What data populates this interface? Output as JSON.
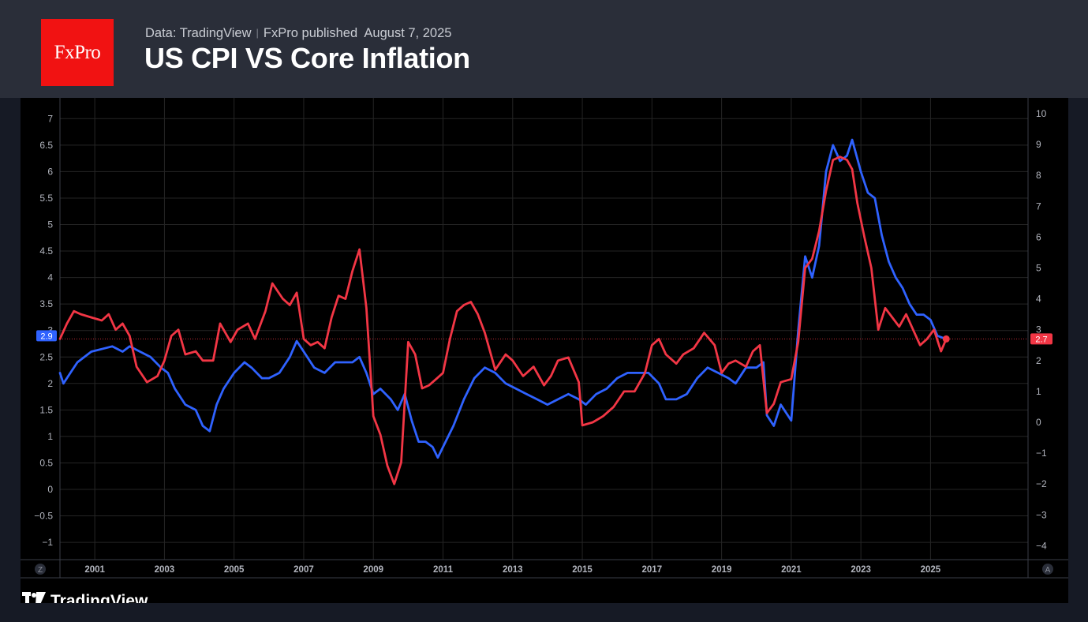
{
  "header": {
    "logo_text": "FxPro",
    "data_source": "Data: TradingView",
    "publisher": "FxPro published",
    "date": "August 7, 2025",
    "title": "US CPI VS Core Inflation"
  },
  "footer": {
    "brand": "TradingView"
  },
  "colors": {
    "core": "#2f62ff",
    "cpi": "#f23645",
    "grid": "#252525",
    "axis_text": "#b2b5be",
    "background": "#000000"
  },
  "chart_data": {
    "type": "line",
    "title": "US CPI VS Core Inflation",
    "grid": true,
    "x_tick_labels": [
      "2001",
      "2003",
      "2005",
      "2007",
      "2009",
      "2011",
      "2013",
      "2015",
      "2017",
      "2019",
      "2021",
      "2023",
      "2025"
    ],
    "left_axis": {
      "ticks": [
        -1,
        -0.5,
        0,
        0.5,
        1,
        1.5,
        2,
        2.5,
        3,
        3.5,
        4,
        4.5,
        5,
        5.5,
        6,
        6.5,
        7
      ],
      "range": [
        -1.2,
        7.1
      ]
    },
    "right_axis": {
      "ticks": [
        -4,
        -3,
        -2,
        -1,
        0,
        1,
        2,
        3,
        4,
        5,
        6,
        7,
        8,
        9,
        10
      ],
      "range": [
        -4.3,
        10.2
      ]
    },
    "axis_buttons": {
      "left": "Z",
      "right": "A"
    },
    "series": [
      {
        "key": "core",
        "axis": "left",
        "last_value_label": "2.9",
        "points": [
          [
            2000.0,
            2.2
          ],
          [
            2000.1,
            2.0
          ],
          [
            2000.3,
            2.2
          ],
          [
            2000.5,
            2.4
          ],
          [
            2000.7,
            2.5
          ],
          [
            2000.9,
            2.6
          ],
          [
            2001.2,
            2.65
          ],
          [
            2001.5,
            2.7
          ],
          [
            2001.8,
            2.6
          ],
          [
            2002.0,
            2.7
          ],
          [
            2002.3,
            2.6
          ],
          [
            2002.6,
            2.5
          ],
          [
            2002.9,
            2.3
          ],
          [
            2003.1,
            2.2
          ],
          [
            2003.3,
            1.9
          ],
          [
            2003.6,
            1.6
          ],
          [
            2003.9,
            1.5
          ],
          [
            2004.1,
            1.2
          ],
          [
            2004.3,
            1.1
          ],
          [
            2004.5,
            1.6
          ],
          [
            2004.7,
            1.9
          ],
          [
            2005.0,
            2.2
          ],
          [
            2005.3,
            2.4
          ],
          [
            2005.5,
            2.3
          ],
          [
            2005.8,
            2.1
          ],
          [
            2006.0,
            2.1
          ],
          [
            2006.3,
            2.2
          ],
          [
            2006.6,
            2.5
          ],
          [
            2006.8,
            2.8
          ],
          [
            2007.0,
            2.6
          ],
          [
            2007.3,
            2.3
          ],
          [
            2007.6,
            2.2
          ],
          [
            2007.9,
            2.4
          ],
          [
            2008.2,
            2.4
          ],
          [
            2008.4,
            2.4
          ],
          [
            2008.6,
            2.5
          ],
          [
            2008.8,
            2.2
          ],
          [
            2009.0,
            1.8
          ],
          [
            2009.2,
            1.9
          ],
          [
            2009.5,
            1.7
          ],
          [
            2009.7,
            1.5
          ],
          [
            2009.9,
            1.8
          ],
          [
            2010.1,
            1.3
          ],
          [
            2010.3,
            0.9
          ],
          [
            2010.5,
            0.9
          ],
          [
            2010.7,
            0.8
          ],
          [
            2010.85,
            0.6
          ],
          [
            2011.0,
            0.8
          ],
          [
            2011.3,
            1.2
          ],
          [
            2011.6,
            1.7
          ],
          [
            2011.9,
            2.1
          ],
          [
            2012.2,
            2.3
          ],
          [
            2012.5,
            2.2
          ],
          [
            2012.8,
            2.0
          ],
          [
            2013.1,
            1.9
          ],
          [
            2013.4,
            1.8
          ],
          [
            2013.7,
            1.7
          ],
          [
            2014.0,
            1.6
          ],
          [
            2014.3,
            1.7
          ],
          [
            2014.6,
            1.8
          ],
          [
            2014.9,
            1.7
          ],
          [
            2015.1,
            1.6
          ],
          [
            2015.4,
            1.8
          ],
          [
            2015.7,
            1.9
          ],
          [
            2016.0,
            2.1
          ],
          [
            2016.3,
            2.2
          ],
          [
            2016.6,
            2.2
          ],
          [
            2016.9,
            2.2
          ],
          [
            2017.2,
            2.0
          ],
          [
            2017.4,
            1.7
          ],
          [
            2017.7,
            1.7
          ],
          [
            2018.0,
            1.8
          ],
          [
            2018.3,
            2.1
          ],
          [
            2018.6,
            2.3
          ],
          [
            2018.9,
            2.2
          ],
          [
            2019.2,
            2.1
          ],
          [
            2019.4,
            2.0
          ],
          [
            2019.7,
            2.3
          ],
          [
            2020.0,
            2.3
          ],
          [
            2020.2,
            2.4
          ],
          [
            2020.3,
            1.4
          ],
          [
            2020.5,
            1.2
          ],
          [
            2020.7,
            1.6
          ],
          [
            2021.0,
            1.3
          ],
          [
            2021.2,
            3.0
          ],
          [
            2021.4,
            4.4
          ],
          [
            2021.6,
            4.0
          ],
          [
            2021.8,
            4.6
          ],
          [
            2022.0,
            6.0
          ],
          [
            2022.2,
            6.5
          ],
          [
            2022.4,
            6.2
          ],
          [
            2022.6,
            6.3
          ],
          [
            2022.75,
            6.6
          ],
          [
            2023.0,
            6.0
          ],
          [
            2023.2,
            5.6
          ],
          [
            2023.4,
            5.5
          ],
          [
            2023.6,
            4.8
          ],
          [
            2023.8,
            4.3
          ],
          [
            2024.0,
            4.0
          ],
          [
            2024.2,
            3.8
          ],
          [
            2024.4,
            3.5
          ],
          [
            2024.6,
            3.3
          ],
          [
            2024.8,
            3.3
          ],
          [
            2025.0,
            3.2
          ],
          [
            2025.2,
            2.9
          ],
          [
            2025.4,
            2.85
          ]
        ]
      },
      {
        "key": "cpi",
        "axis": "right",
        "last_value_label": "2.7",
        "points": [
          [
            2000.0,
            2.7
          ],
          [
            2000.2,
            3.2
          ],
          [
            2000.4,
            3.6
          ],
          [
            2000.6,
            3.5
          ],
          [
            2000.9,
            3.4
          ],
          [
            2001.2,
            3.3
          ],
          [
            2001.4,
            3.5
          ],
          [
            2001.6,
            3.0
          ],
          [
            2001.8,
            3.2
          ],
          [
            2002.0,
            2.8
          ],
          [
            2002.2,
            1.8
          ],
          [
            2002.5,
            1.3
          ],
          [
            2002.8,
            1.5
          ],
          [
            2003.0,
            2.0
          ],
          [
            2003.2,
            2.8
          ],
          [
            2003.4,
            3.0
          ],
          [
            2003.6,
            2.2
          ],
          [
            2003.9,
            2.3
          ],
          [
            2004.1,
            2.0
          ],
          [
            2004.4,
            2.0
          ],
          [
            2004.6,
            3.2
          ],
          [
            2004.9,
            2.6
          ],
          [
            2005.1,
            3.0
          ],
          [
            2005.4,
            3.2
          ],
          [
            2005.6,
            2.7
          ],
          [
            2005.9,
            3.6
          ],
          [
            2006.1,
            4.5
          ],
          [
            2006.4,
            4.0
          ],
          [
            2006.6,
            3.8
          ],
          [
            2006.8,
            4.2
          ],
          [
            2007.0,
            2.7
          ],
          [
            2007.2,
            2.5
          ],
          [
            2007.4,
            2.6
          ],
          [
            2007.6,
            2.4
          ],
          [
            2007.8,
            3.4
          ],
          [
            2008.0,
            4.1
          ],
          [
            2008.2,
            4.0
          ],
          [
            2008.4,
            4.9
          ],
          [
            2008.6,
            5.6
          ],
          [
            2008.8,
            3.7
          ],
          [
            2009.0,
            0.2
          ],
          [
            2009.2,
            -0.4
          ],
          [
            2009.4,
            -1.4
          ],
          [
            2009.6,
            -2.0
          ],
          [
            2009.8,
            -1.3
          ],
          [
            2010.0,
            2.6
          ],
          [
            2010.2,
            2.2
          ],
          [
            2010.4,
            1.1
          ],
          [
            2010.6,
            1.2
          ],
          [
            2010.8,
            1.4
          ],
          [
            2011.0,
            1.6
          ],
          [
            2011.2,
            2.7
          ],
          [
            2011.4,
            3.6
          ],
          [
            2011.6,
            3.8
          ],
          [
            2011.8,
            3.9
          ],
          [
            2012.0,
            3.5
          ],
          [
            2012.2,
            2.9
          ],
          [
            2012.5,
            1.7
          ],
          [
            2012.8,
            2.2
          ],
          [
            2013.0,
            2.0
          ],
          [
            2013.3,
            1.5
          ],
          [
            2013.6,
            1.8
          ],
          [
            2013.9,
            1.2
          ],
          [
            2014.1,
            1.5
          ],
          [
            2014.3,
            2.0
          ],
          [
            2014.6,
            2.1
          ],
          [
            2014.9,
            1.3
          ],
          [
            2015.0,
            -0.1
          ],
          [
            2015.3,
            0.0
          ],
          [
            2015.6,
            0.2
          ],
          [
            2015.9,
            0.5
          ],
          [
            2016.2,
            1.0
          ],
          [
            2016.5,
            1.0
          ],
          [
            2016.8,
            1.6
          ],
          [
            2017.0,
            2.5
          ],
          [
            2017.2,
            2.7
          ],
          [
            2017.4,
            2.2
          ],
          [
            2017.7,
            1.9
          ],
          [
            2017.9,
            2.2
          ],
          [
            2018.2,
            2.4
          ],
          [
            2018.5,
            2.9
          ],
          [
            2018.8,
            2.5
          ],
          [
            2019.0,
            1.6
          ],
          [
            2019.2,
            1.9
          ],
          [
            2019.4,
            2.0
          ],
          [
            2019.7,
            1.8
          ],
          [
            2019.9,
            2.3
          ],
          [
            2020.1,
            2.5
          ],
          [
            2020.3,
            0.3
          ],
          [
            2020.5,
            0.6
          ],
          [
            2020.7,
            1.3
          ],
          [
            2021.0,
            1.4
          ],
          [
            2021.2,
            2.6
          ],
          [
            2021.4,
            5.0
          ],
          [
            2021.6,
            5.3
          ],
          [
            2021.8,
            6.2
          ],
          [
            2022.0,
            7.5
          ],
          [
            2022.2,
            8.5
          ],
          [
            2022.4,
            8.6
          ],
          [
            2022.6,
            8.5
          ],
          [
            2022.75,
            8.2
          ],
          [
            2022.9,
            7.1
          ],
          [
            2023.1,
            6.0
          ],
          [
            2023.3,
            5.0
          ],
          [
            2023.5,
            3.0
          ],
          [
            2023.7,
            3.7
          ],
          [
            2023.9,
            3.4
          ],
          [
            2024.1,
            3.1
          ],
          [
            2024.3,
            3.5
          ],
          [
            2024.5,
            3.0
          ],
          [
            2024.7,
            2.5
          ],
          [
            2024.9,
            2.7
          ],
          [
            2025.1,
            3.0
          ],
          [
            2025.3,
            2.3
          ],
          [
            2025.45,
            2.7
          ]
        ]
      }
    ]
  }
}
